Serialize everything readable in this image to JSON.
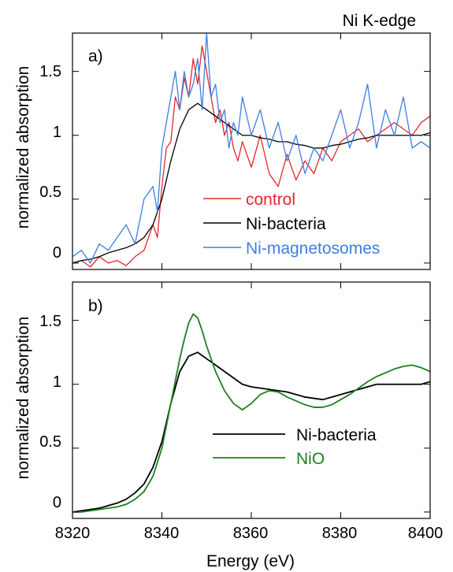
{
  "figure_title": "Ni K-edge",
  "xlabel": "Energy (eV)",
  "colors": {
    "control": "#e8242b",
    "ni_bacteria": "#000000",
    "ni_magnetosomes": "#3d7fe0",
    "nio": "#1f7f1f"
  },
  "chart_data": [
    {
      "type": "line",
      "panel_label": "a)",
      "ylabel": "normalized absorption",
      "xlim": [
        8320,
        8400
      ],
      "ylim": [
        -0.05,
        1.8
      ],
      "x_ticks": [
        8320,
        8340,
        8360,
        8380,
        8400
      ],
      "y_ticks": [
        "0",
        "0.5",
        "1",
        "1.5"
      ],
      "grid": false,
      "legend_position": "lower-right",
      "series": [
        {
          "name": "control",
          "color": "#e8242b",
          "x": [
            8320,
            8322,
            8324,
            8326,
            8328,
            8330,
            8332,
            8334,
            8336,
            8338,
            8339,
            8340,
            8341,
            8342,
            8343,
            8344,
            8345,
            8346,
            8347,
            8348,
            8349,
            8350,
            8351,
            8352,
            8353,
            8354,
            8355,
            8356,
            8357,
            8358,
            8360,
            8362,
            8364,
            8366,
            8368,
            8370,
            8372,
            8374,
            8376,
            8378,
            8380,
            8382,
            8384,
            8386,
            8388,
            8390,
            8392,
            8394,
            8396,
            8398,
            8400
          ],
          "y": [
            0.0,
            0.02,
            -0.03,
            0.05,
            0.0,
            0.02,
            -0.02,
            0.05,
            0.1,
            0.3,
            0.2,
            0.6,
            0.9,
            0.95,
            1.3,
            1.2,
            1.45,
            1.3,
            1.6,
            1.4,
            1.7,
            1.5,
            1.3,
            1.1,
            1.2,
            1.0,
            1.1,
            0.9,
            0.8,
            0.95,
            0.75,
            1.0,
            0.7,
            0.6,
            0.85,
            0.65,
            0.8,
            0.7,
            0.9,
            0.8,
            0.95,
            1.0,
            1.05,
            0.95,
            1.0,
            1.05,
            1.1,
            1.05,
            1.0,
            1.1,
            1.15
          ]
        },
        {
          "name": "Ni-bacteria",
          "color": "#000000",
          "x": [
            8320,
            8322,
            8324,
            8326,
            8328,
            8330,
            8332,
            8334,
            8336,
            8338,
            8340,
            8342,
            8344,
            8346,
            8348,
            8350,
            8352,
            8354,
            8356,
            8358,
            8360,
            8362,
            8364,
            8366,
            8368,
            8370,
            8372,
            8374,
            8376,
            8378,
            8380,
            8382,
            8384,
            8386,
            8388,
            8390,
            8392,
            8394,
            8396,
            8398,
            8400
          ],
          "y": [
            0.0,
            0.02,
            0.03,
            0.05,
            0.08,
            0.1,
            0.12,
            0.15,
            0.2,
            0.3,
            0.5,
            0.8,
            1.05,
            1.2,
            1.25,
            1.2,
            1.15,
            1.1,
            1.05,
            1.0,
            1.0,
            0.98,
            0.97,
            0.95,
            0.95,
            0.93,
            0.92,
            0.9,
            0.9,
            0.92,
            0.93,
            0.95,
            0.97,
            0.98,
            1.0,
            1.0,
            1.0,
            1.0,
            1.0,
            1.0,
            1.02
          ]
        },
        {
          "name": "Ni-magnetosomes",
          "color": "#3d7fe0",
          "x": [
            8320,
            8322,
            8324,
            8326,
            8328,
            8330,
            8332,
            8334,
            8336,
            8338,
            8339,
            8340,
            8341,
            8342,
            8343,
            8344,
            8345,
            8346,
            8347,
            8348,
            8349,
            8350,
            8351,
            8352,
            8353,
            8354,
            8355,
            8356,
            8357,
            8358,
            8360,
            8362,
            8364,
            8366,
            8368,
            8370,
            8372,
            8374,
            8376,
            8378,
            8380,
            8382,
            8384,
            8386,
            8388,
            8390,
            8392,
            8394,
            8396,
            8398,
            8400
          ],
          "y": [
            0.05,
            0.1,
            0.0,
            0.15,
            0.1,
            0.2,
            0.3,
            0.15,
            0.5,
            0.6,
            0.4,
            0.9,
            1.1,
            1.3,
            1.5,
            1.2,
            1.5,
            1.3,
            1.4,
            1.6,
            1.2,
            1.8,
            1.3,
            1.4,
            1.1,
            1.2,
            0.9,
            1.1,
            1.0,
            1.3,
            1.0,
            1.2,
            0.9,
            1.1,
            0.8,
            1.0,
            0.7,
            0.9,
            0.8,
            1.0,
            1.2,
            0.9,
            1.1,
            1.4,
            0.9,
            1.2,
            1.0,
            1.3,
            0.9,
            0.95,
            0.9
          ]
        }
      ]
    },
    {
      "type": "line",
      "panel_label": "b)",
      "ylabel": "normalized absorption",
      "xlim": [
        8320,
        8400
      ],
      "ylim": [
        -0.05,
        1.8
      ],
      "x_ticks": [
        8320,
        8340,
        8360,
        8380,
        8400
      ],
      "x_tick_labels": [
        "8320",
        "8340",
        "8360",
        "8380",
        "8400"
      ],
      "y_ticks": [
        "0",
        "0.5",
        "1",
        "1.5"
      ],
      "grid": false,
      "legend_position": "lower-right",
      "series": [
        {
          "name": "Ni-bacteria",
          "color": "#000000",
          "x": [
            8320,
            8322,
            8324,
            8326,
            8328,
            8330,
            8332,
            8334,
            8336,
            8338,
            8340,
            8342,
            8344,
            8346,
            8348,
            8350,
            8352,
            8354,
            8356,
            8358,
            8360,
            8362,
            8364,
            8366,
            8368,
            8370,
            8372,
            8374,
            8376,
            8378,
            8380,
            8382,
            8384,
            8386,
            8388,
            8390,
            8392,
            8394,
            8396,
            8398,
            8400
          ],
          "y": [
            0.0,
            0.01,
            0.02,
            0.03,
            0.05,
            0.07,
            0.1,
            0.15,
            0.22,
            0.35,
            0.55,
            0.85,
            1.1,
            1.22,
            1.25,
            1.2,
            1.15,
            1.1,
            1.05,
            1.0,
            0.98,
            0.97,
            0.96,
            0.95,
            0.94,
            0.92,
            0.9,
            0.89,
            0.88,
            0.9,
            0.92,
            0.94,
            0.96,
            0.98,
            1.0,
            1.0,
            1.0,
            1.0,
            1.0,
            1.0,
            1.02
          ]
        },
        {
          "name": "NiO",
          "color": "#1f7f1f",
          "x": [
            8320,
            8322,
            8324,
            8326,
            8328,
            8330,
            8332,
            8334,
            8336,
            8338,
            8340,
            8342,
            8344,
            8345,
            8346,
            8347,
            8348,
            8349,
            8350,
            8352,
            8354,
            8356,
            8358,
            8360,
            8362,
            8364,
            8366,
            8368,
            8370,
            8372,
            8374,
            8376,
            8378,
            8380,
            8382,
            8384,
            8386,
            8388,
            8390,
            8392,
            8394,
            8396,
            8398,
            8400
          ],
          "y": [
            0.0,
            0.0,
            0.01,
            0.02,
            0.03,
            0.04,
            0.06,
            0.1,
            0.16,
            0.28,
            0.5,
            0.85,
            1.2,
            1.35,
            1.48,
            1.55,
            1.52,
            1.42,
            1.3,
            1.1,
            0.95,
            0.85,
            0.8,
            0.85,
            0.92,
            0.95,
            0.94,
            0.9,
            0.87,
            0.84,
            0.82,
            0.82,
            0.84,
            0.88,
            0.92,
            0.97,
            1.02,
            1.06,
            1.09,
            1.12,
            1.14,
            1.15,
            1.13,
            1.1
          ]
        }
      ]
    }
  ]
}
